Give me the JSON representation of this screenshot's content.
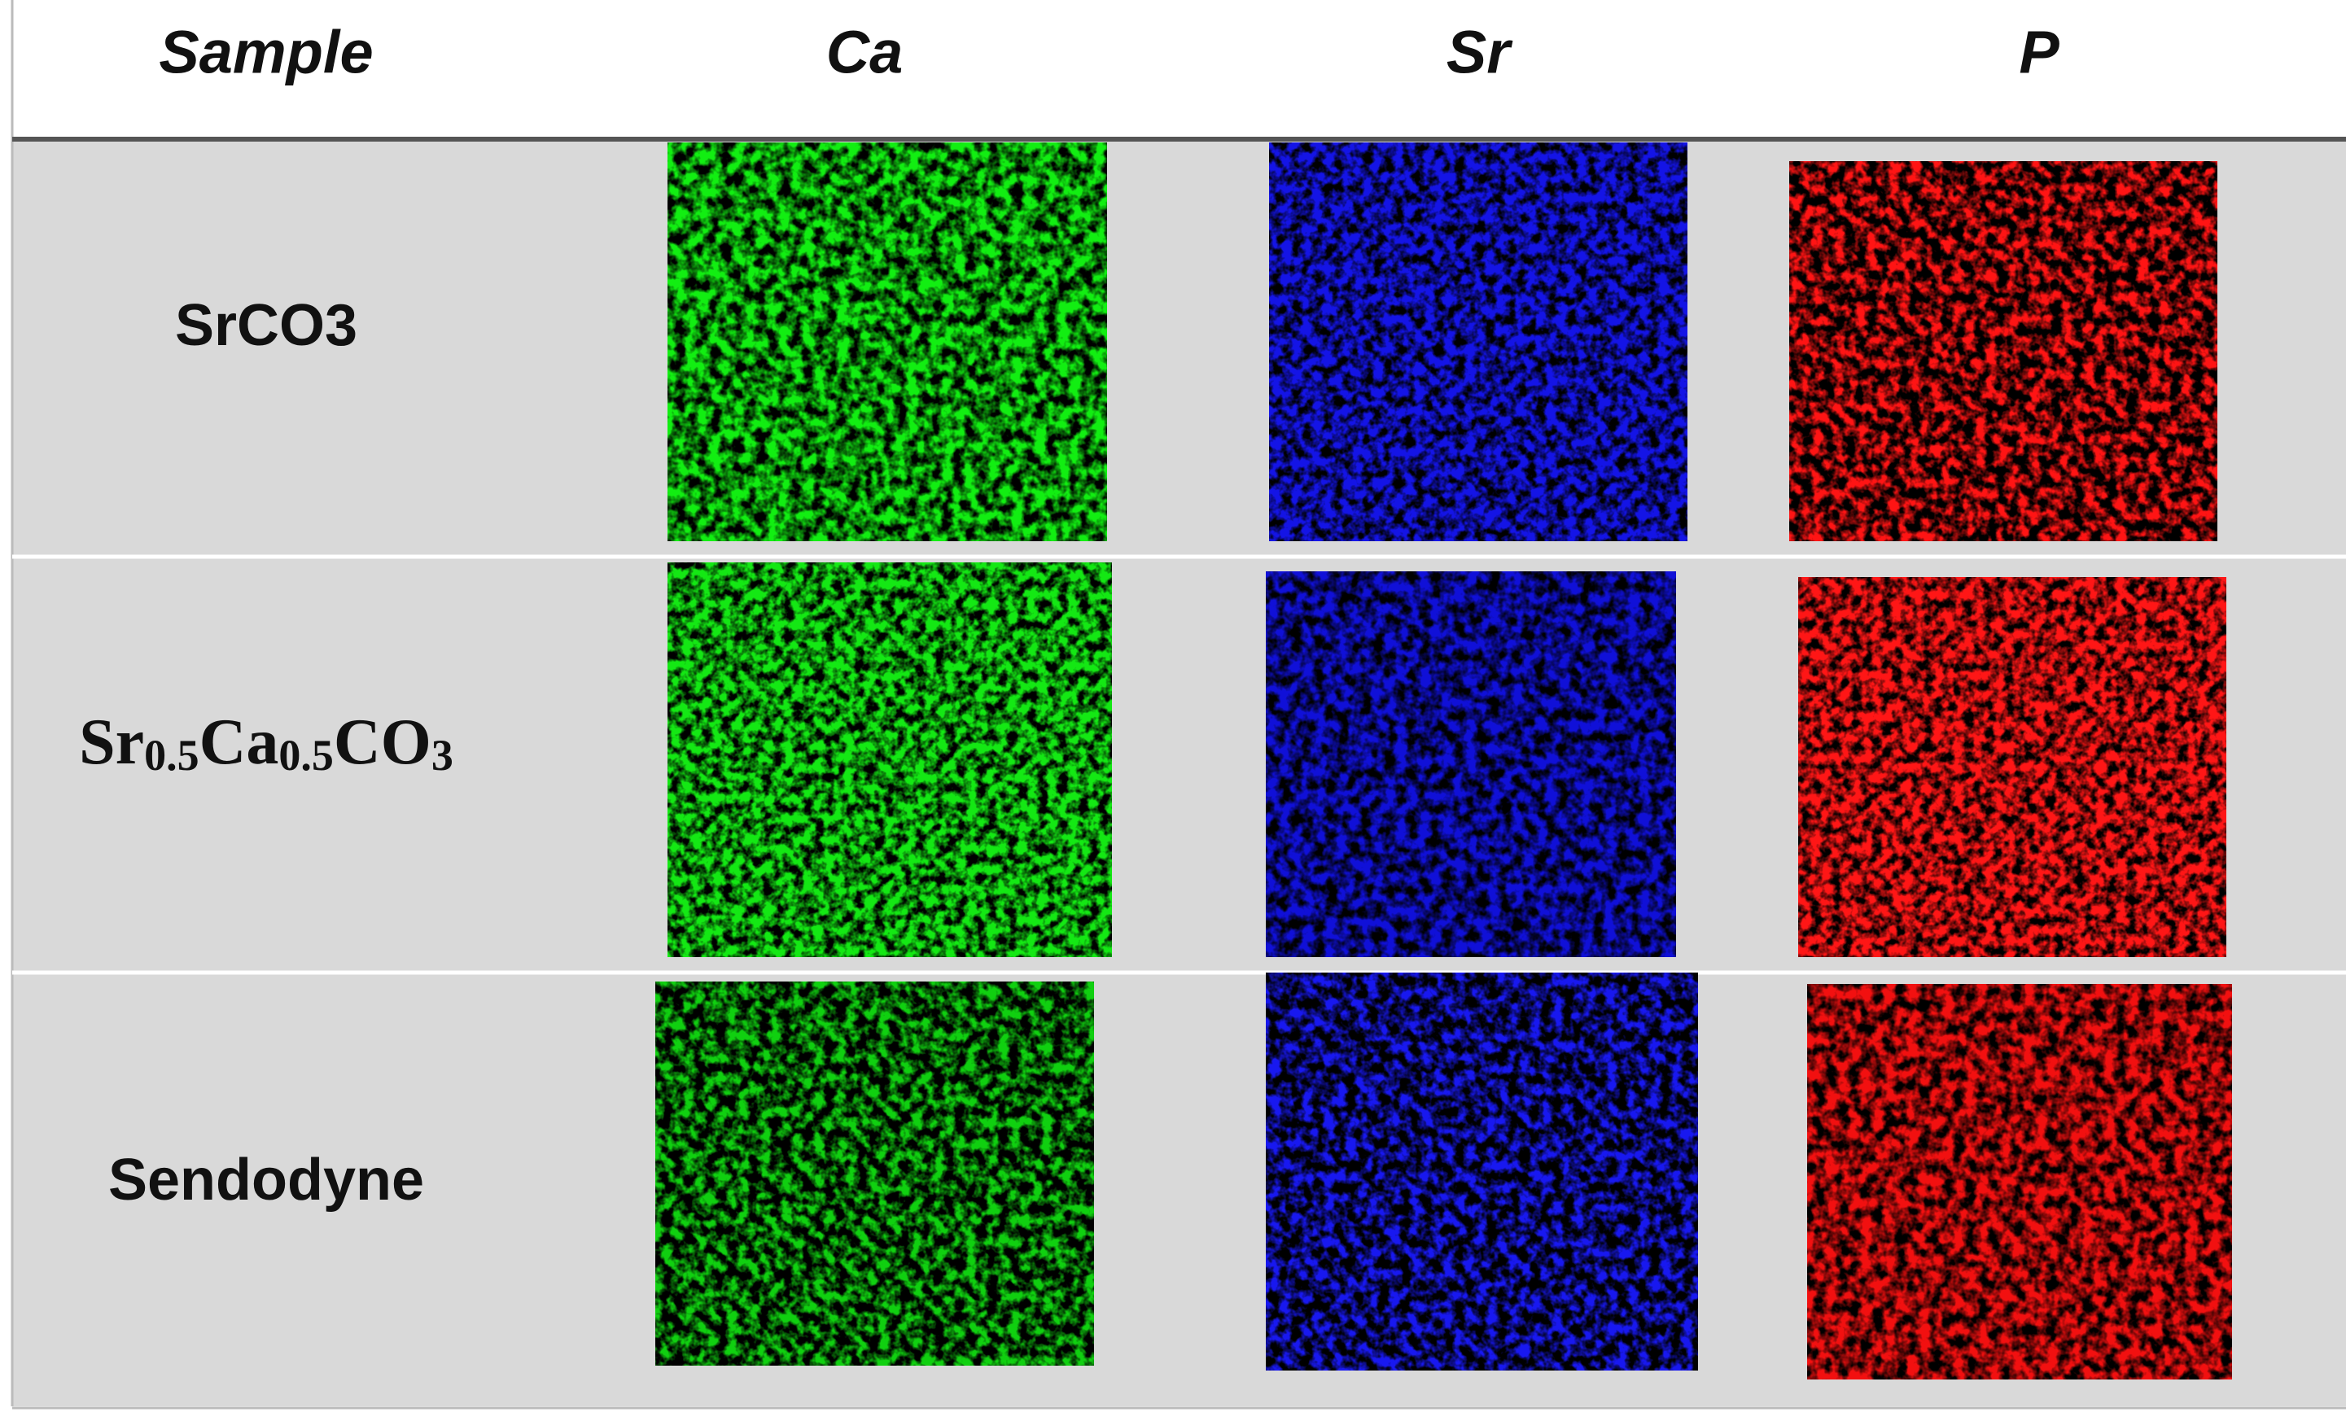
{
  "table": {
    "columns": [
      "Sample",
      "Ca",
      "Sr",
      "P"
    ],
    "rows": [
      {
        "sample": [
          {
            "text": "SrCO3"
          }
        ]
      },
      {
        "sample": [
          {
            "text": "Sr"
          },
          {
            "sub": "0.5"
          },
          {
            "text": "Ca"
          },
          {
            "sub": "0.5"
          },
          {
            "text": "CO"
          },
          {
            "sub": "3"
          }
        ]
      },
      {
        "sample": [
          {
            "text": "Sendodyne"
          }
        ]
      }
    ]
  }
}
